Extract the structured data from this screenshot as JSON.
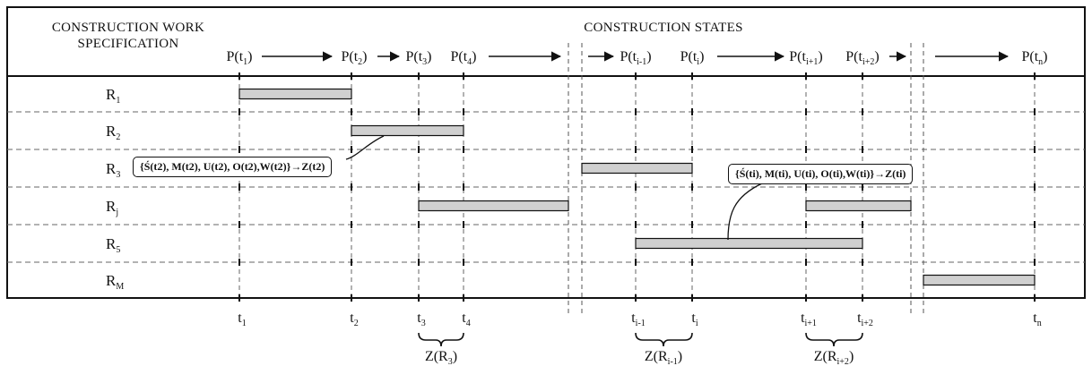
{
  "header": {
    "left_title_line1": "CONSTRUCTION WORK",
    "left_title_line2": "SPECIFICATION",
    "right_title": "CONSTRUCTION STATES"
  },
  "states": [
    {
      "label": "P(t",
      "sub": "1"
    },
    {
      "label": "P(t",
      "sub": "2"
    },
    {
      "label": "P(t",
      "sub": "3"
    },
    {
      "label": "P(t",
      "sub": "4"
    },
    {
      "label": "P(t",
      "sub": "i-1"
    },
    {
      "label": "P(t",
      "sub": "i"
    },
    {
      "label": "P(t",
      "sub": "i+1"
    },
    {
      "label": "P(t",
      "sub": "i+2"
    },
    {
      "label": "P(t",
      "sub": "n"
    }
  ],
  "rows": [
    {
      "label": "R",
      "sub": "1"
    },
    {
      "label": "R",
      "sub": "2"
    },
    {
      "label": "R",
      "sub": "3"
    },
    {
      "label": "R",
      "sub": "j"
    },
    {
      "label": "R",
      "sub": "5"
    },
    {
      "label": "R",
      "sub": "M"
    }
  ],
  "time_points": [
    {
      "label": "t",
      "sub": "1"
    },
    {
      "label": "t",
      "sub": "2"
    },
    {
      "label": "t",
      "sub": "3"
    },
    {
      "label": "t",
      "sub": "4"
    },
    {
      "label": "t",
      "sub": "i-1"
    },
    {
      "label": "t",
      "sub": "i"
    },
    {
      "label": "t",
      "sub": "i+1"
    },
    {
      "label": "t",
      "sub": "i+2"
    },
    {
      "label": "t",
      "sub": "n"
    }
  ],
  "bars": [
    {
      "row": "R1",
      "start": "t1",
      "end": "t2"
    },
    {
      "row": "R2",
      "start": "t2",
      "end": "t4"
    },
    {
      "row": "R3",
      "start": "t(i-1)",
      "end": "t(i)"
    },
    {
      "row": "Rj",
      "start": "t3",
      "end": "break"
    },
    {
      "row": "Rj",
      "start": "t(i+1)",
      "end": "break"
    },
    {
      "row": "R5",
      "start": "t(i-1)",
      "end": "t(i+2)"
    },
    {
      "row": "RM",
      "start": "break",
      "end": "tn"
    }
  ],
  "z_labels": [
    {
      "label": "Z(R",
      "sub": "3",
      "close": ")"
    },
    {
      "label": "Z(R",
      "sub": "i-1",
      "close": ")"
    },
    {
      "label": "Z(R",
      "sub": "i+2",
      "close": ")"
    }
  ],
  "callouts": {
    "left": {
      "text": "{Ś(t2), M(t2), U(t2), O(t2),W(t2)}→Z(t2)",
      "sub": "2"
    },
    "right": {
      "text": "{Ś(ti), M(ti), U(ti), O(ti),W(ti)}→Z(ti)",
      "sub": "i"
    }
  },
  "colors": {
    "bar_fill": "#d0d0d0",
    "line": "#111111"
  }
}
